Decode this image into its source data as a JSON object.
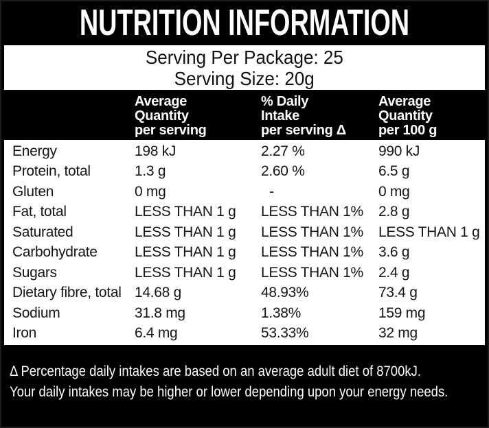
{
  "title": "NUTRITION INFORMATION",
  "serving_info": {
    "per_package": "Serving Per Package: 25",
    "size": "Serving Size: 20g"
  },
  "table": {
    "headers": {
      "per_serving": [
        "Average",
        "Quantity",
        "per serving"
      ],
      "daily_intake": [
        "% Daily",
        "Intake",
        "per serving Δ"
      ],
      "per_100g": [
        "Average",
        "Quantity",
        "per 100 g"
      ]
    },
    "rows": [
      {
        "nutrient": "Energy",
        "per_serving": "198 kJ",
        "daily_intake": "2.27 %",
        "per_100g": "990 kJ"
      },
      {
        "nutrient": "Protein, total",
        "per_serving": "1.3 g",
        "daily_intake": "2.60 %",
        "per_100g": "6.5 g"
      },
      {
        "nutrient": "Gluten",
        "per_serving": "0 mg",
        "daily_intake": "-",
        "per_100g": "0 mg"
      },
      {
        "nutrient": "Fat, total",
        "per_serving": "LESS THAN 1 g",
        "daily_intake": "LESS THAN 1%",
        "per_100g": "2.8 g"
      },
      {
        "nutrient": "Saturated",
        "per_serving": "LESS THAN 1 g",
        "daily_intake": "LESS THAN 1%",
        "per_100g": "LESS THAN 1 g"
      },
      {
        "nutrient": "Carbohydrate",
        "per_serving": "LESS THAN 1 g",
        "daily_intake": "LESS THAN 1%",
        "per_100g": "3.6 g"
      },
      {
        "nutrient": "Sugars",
        "per_serving": "LESS THAN 1 g",
        "daily_intake": "LESS THAN 1%",
        "per_100g": "2.4 g"
      },
      {
        "nutrient": "Dietary fibre, total",
        "per_serving": "14.68 g",
        "daily_intake": "48.93%",
        "per_100g": "73.4 g"
      },
      {
        "nutrient": "Sodium",
        "per_serving": "31.8 mg",
        "daily_intake": "1.38%",
        "per_100g": "159 mg"
      },
      {
        "nutrient": "Iron",
        "per_serving": "6.4 mg",
        "daily_intake": "53.33%",
        "per_100g": "32 mg"
      }
    ]
  },
  "footnote": {
    "line1": "Δ Percentage daily intakes are based on an average adult diet of 8700kJ.",
    "line2": "Your daily intakes may be higher or lower depending upon your energy needs."
  },
  "colors": {
    "background": "#000000",
    "panel": "#ffffff",
    "text_on_panel": "#151515",
    "text_on_background": "#ffffff"
  }
}
